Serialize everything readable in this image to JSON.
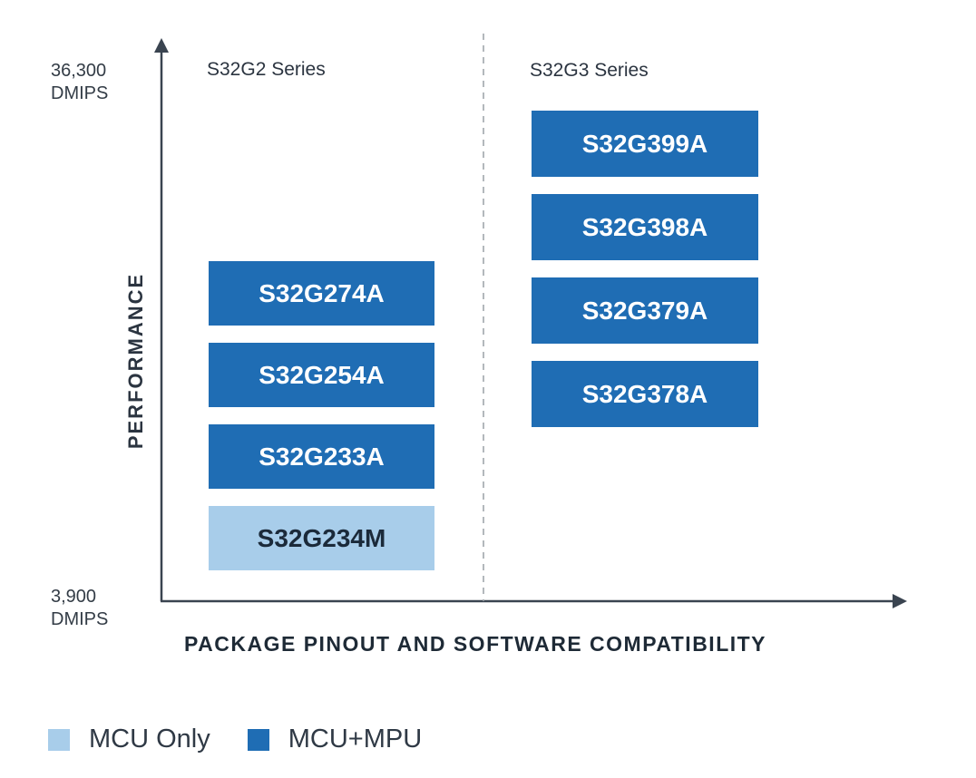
{
  "axes": {
    "y_top_value": "36,300",
    "y_top_unit": "DMIPS",
    "y_bottom_value": "3,900",
    "y_bottom_unit": "DMIPS",
    "y_title": "PERFORMANCE",
    "x_title": "PACKAGE PINOUT AND SOFTWARE COMPATIBILITY"
  },
  "groups": [
    {
      "title": "S32G2 Series",
      "parts": [
        {
          "name": "S32G274A",
          "type": "MCU+MPU"
        },
        {
          "name": "S32G254A",
          "type": "MCU+MPU"
        },
        {
          "name": "S32G233A",
          "type": "MCU+MPU"
        },
        {
          "name": "S32G234M",
          "type": "MCU Only"
        }
      ]
    },
    {
      "title": "S32G3 Series",
      "parts": [
        {
          "name": "S32G399A",
          "type": "MCU+MPU"
        },
        {
          "name": "S32G398A",
          "type": "MCU+MPU"
        },
        {
          "name": "S32G379A",
          "type": "MCU+MPU"
        },
        {
          "name": "S32G378A",
          "type": "MCU+MPU"
        }
      ]
    }
  ],
  "legend": [
    {
      "label": "MCU Only",
      "color": "#a8cdea"
    },
    {
      "label": "MCU+MPU",
      "color": "#1f6db4"
    }
  ]
}
